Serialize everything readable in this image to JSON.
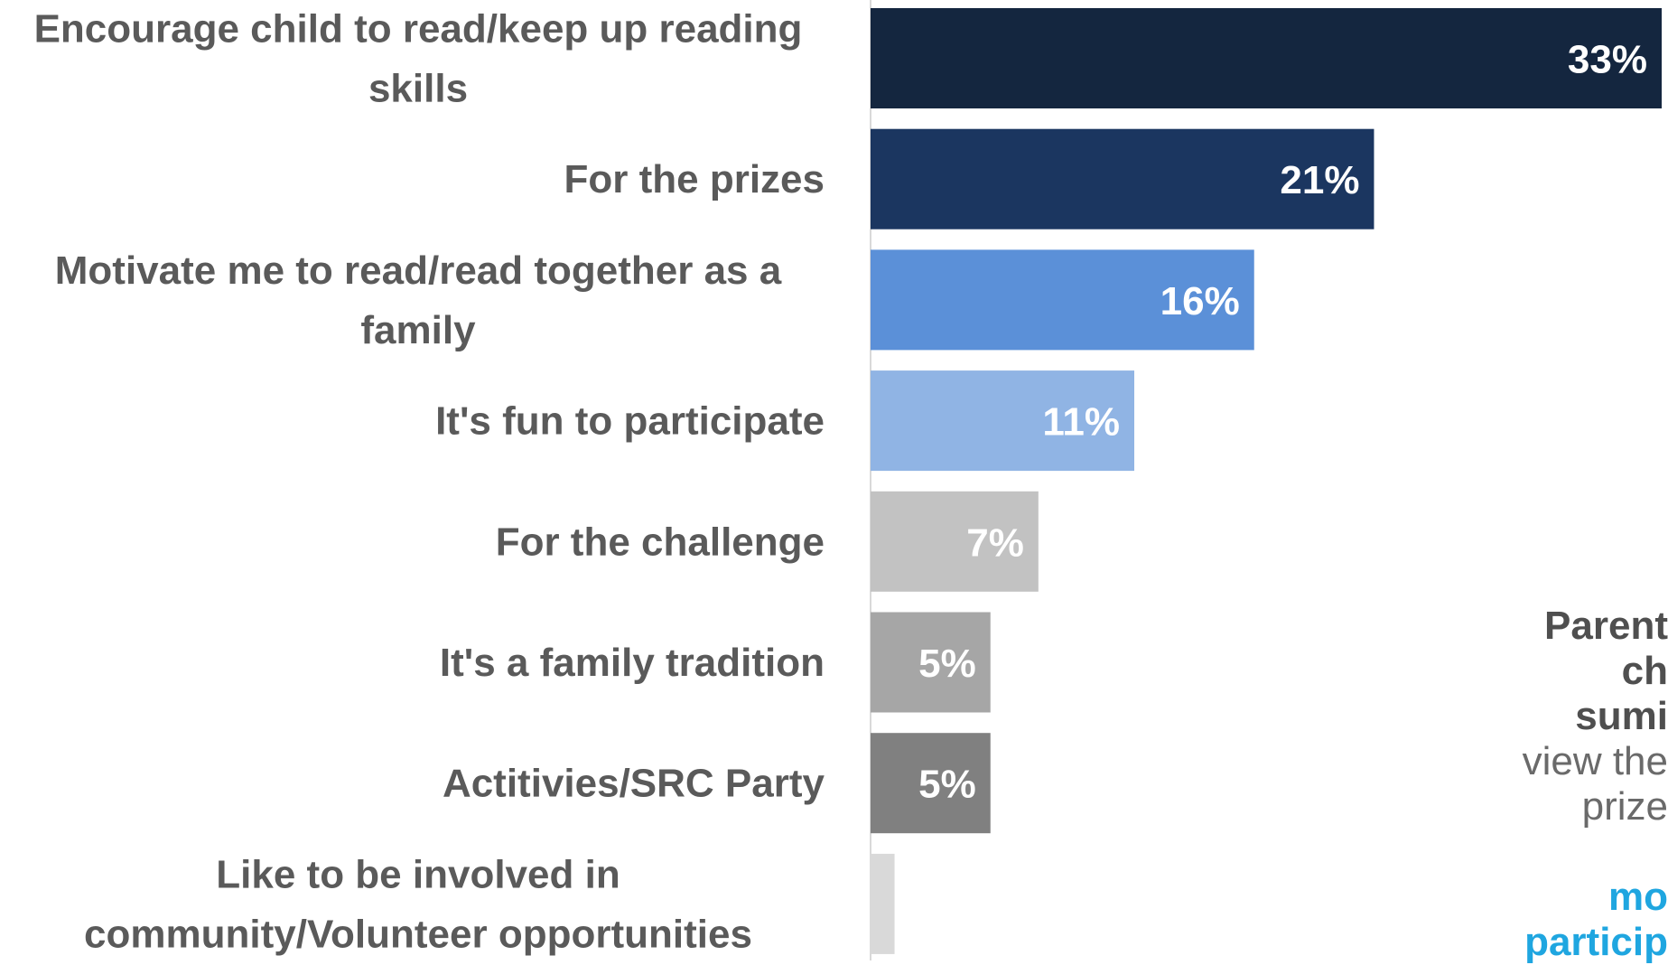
{
  "chart_data": {
    "type": "bar",
    "orientation": "horizontal",
    "categories": [
      [
        "Encourage child to read/keep up reading",
        "skills"
      ],
      [
        "For the prizes"
      ],
      [
        "Motivate me to read/read together as a",
        "family"
      ],
      [
        "It's fun to participate"
      ],
      [
        "For the challenge"
      ],
      [
        "It's a family tradition"
      ],
      [
        "Actitivies/SRC Party"
      ],
      [
        "Like to be involved in",
        "community/Volunteer opportunities"
      ]
    ],
    "values": [
      33,
      21,
      16,
      11,
      7,
      5,
      5,
      1
    ],
    "value_labels": [
      "33%",
      "21%",
      "16%",
      "11%",
      "7%",
      "5%",
      "5%",
      ""
    ],
    "colors": [
      "#14263f",
      "#1b3660",
      "#5b90d8",
      "#90b4e4",
      "#c2c2c2",
      "#a6a6a6",
      "#808080",
      "#d9d9d9"
    ],
    "xlim": [
      0,
      33
    ],
    "grid": false,
    "legend": "none"
  },
  "side_note": {
    "lines": [
      {
        "text": "Parent",
        "style": "dark"
      },
      {
        "text": "ch",
        "style": "dark"
      },
      {
        "text": "sumi",
        "style": "dark"
      },
      {
        "text": "view the",
        "style": "gray"
      },
      {
        "text": "prize",
        "style": "gray"
      },
      {
        "text": "",
        "style": "gray"
      },
      {
        "text": "mo",
        "style": "blue"
      },
      {
        "text": "particip",
        "style": "blue"
      }
    ]
  }
}
